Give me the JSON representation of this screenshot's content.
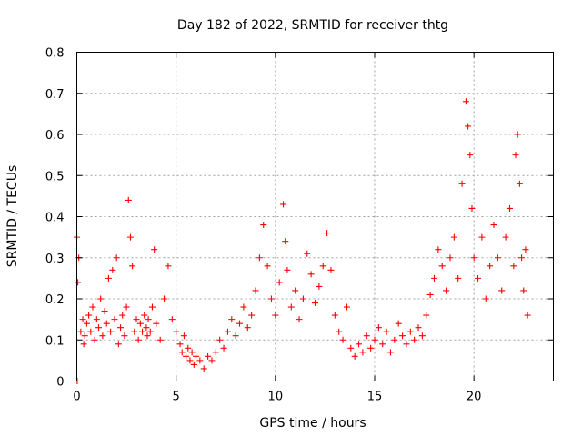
{
  "chart_data": {
    "type": "scatter",
    "title": "Day 182 of 2022, SRMTID for receiver thtg",
    "xlabel": "GPS time / hours",
    "ylabel": "SRMTID / TECUs",
    "xlim": [
      0,
      24
    ],
    "ylim": [
      0,
      0.8
    ],
    "grid": true,
    "marker": "plus",
    "marker_color": "#ff0000",
    "x_ticks": [
      0,
      5,
      10,
      15,
      20
    ],
    "y_ticks": [
      0,
      0.1,
      0.2,
      0.3,
      0.4,
      0.5,
      0.6,
      0.7,
      0.8
    ],
    "x_tick_labels": [
      "0",
      "5",
      "10",
      "15",
      "20"
    ],
    "y_tick_labels": [
      "0",
      "0.1",
      "0.2",
      "0.3",
      "0.4",
      "0.5",
      "0.6",
      "0.7",
      "0.8"
    ],
    "series": [
      {
        "name": "thtg",
        "x": [
          0.0,
          0.02,
          0.05,
          0.1,
          0.2,
          0.3,
          0.35,
          0.4,
          0.5,
          0.6,
          0.7,
          0.8,
          0.9,
          1.0,
          1.1,
          1.2,
          1.3,
          1.4,
          1.5,
          1.6,
          1.7,
          1.8,
          1.9,
          2.0,
          2.1,
          2.2,
          2.3,
          2.4,
          2.5,
          2.6,
          2.7,
          2.8,
          2.9,
          3.0,
          3.1,
          3.2,
          3.3,
          3.4,
          3.5,
          3.55,
          3.6,
          3.7,
          3.8,
          3.9,
          4.0,
          4.2,
          4.4,
          4.6,
          4.8,
          5.0,
          5.2,
          5.3,
          5.4,
          5.5,
          5.6,
          5.7,
          5.8,
          5.9,
          6.0,
          6.2,
          6.4,
          6.6,
          6.8,
          7.0,
          7.2,
          7.4,
          7.6,
          7.8,
          8.0,
          8.2,
          8.4,
          8.6,
          8.8,
          9.0,
          9.2,
          9.4,
          9.6,
          9.8,
          10.0,
          10.2,
          10.4,
          10.5,
          10.6,
          10.8,
          11.0,
          11.2,
          11.4,
          11.6,
          11.8,
          12.0,
          12.2,
          12.4,
          12.6,
          12.8,
          13.0,
          13.2,
          13.4,
          13.6,
          13.8,
          14.0,
          14.2,
          14.4,
          14.6,
          14.8,
          15.0,
          15.2,
          15.4,
          15.6,
          15.8,
          16.0,
          16.2,
          16.4,
          16.6,
          16.8,
          17.0,
          17.2,
          17.4,
          17.6,
          17.8,
          18.0,
          18.2,
          18.4,
          18.6,
          18.8,
          19.0,
          19.2,
          19.4,
          19.6,
          19.7,
          19.8,
          19.9,
          20.0,
          20.2,
          20.4,
          20.6,
          20.8,
          21.0,
          21.2,
          21.4,
          21.6,
          21.8,
          22.0,
          22.1,
          22.2,
          22.3,
          22.4,
          22.5,
          22.6,
          22.7
        ],
        "y": [
          0.35,
          0.0,
          0.24,
          0.3,
          0.12,
          0.15,
          0.09,
          0.11,
          0.14,
          0.16,
          0.12,
          0.18,
          0.1,
          0.15,
          0.13,
          0.2,
          0.11,
          0.17,
          0.14,
          0.25,
          0.12,
          0.27,
          0.15,
          0.3,
          0.09,
          0.13,
          0.16,
          0.11,
          0.18,
          0.44,
          0.35,
          0.28,
          0.12,
          0.15,
          0.1,
          0.14,
          0.12,
          0.16,
          0.13,
          0.11,
          0.15,
          0.12,
          0.18,
          0.32,
          0.14,
          0.1,
          0.2,
          0.28,
          0.15,
          0.12,
          0.09,
          0.07,
          0.11,
          0.06,
          0.08,
          0.05,
          0.07,
          0.04,
          0.06,
          0.05,
          0.03,
          0.06,
          0.05,
          0.07,
          0.1,
          0.08,
          0.12,
          0.15,
          0.11,
          0.14,
          0.18,
          0.13,
          0.16,
          0.22,
          0.3,
          0.38,
          0.28,
          0.2,
          0.16,
          0.24,
          0.43,
          0.34,
          0.27,
          0.18,
          0.22,
          0.15,
          0.2,
          0.31,
          0.26,
          0.19,
          0.23,
          0.28,
          0.36,
          0.27,
          0.16,
          0.12,
          0.1,
          0.18,
          0.08,
          0.06,
          0.09,
          0.07,
          0.11,
          0.08,
          0.1,
          0.13,
          0.09,
          0.12,
          0.07,
          0.1,
          0.14,
          0.11,
          0.09,
          0.12,
          0.1,
          0.13,
          0.11,
          0.16,
          0.21,
          0.25,
          0.32,
          0.28,
          0.22,
          0.3,
          0.35,
          0.25,
          0.48,
          0.68,
          0.62,
          0.55,
          0.42,
          0.3,
          0.25,
          0.35,
          0.2,
          0.28,
          0.38,
          0.3,
          0.22,
          0.35,
          0.42,
          0.28,
          0.55,
          0.6,
          0.48,
          0.3,
          0.22,
          0.32,
          0.16
        ]
      }
    ]
  }
}
